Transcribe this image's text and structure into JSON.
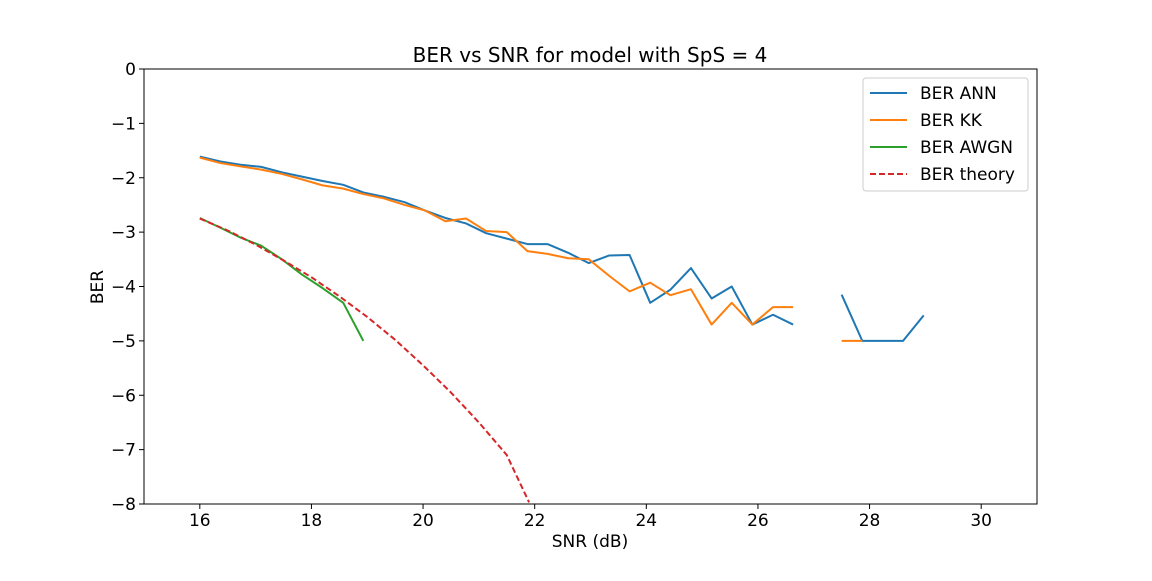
{
  "chart_data": {
    "type": "line",
    "title": "BER vs SNR for model with SpS = 4",
    "xlabel": "SNR (dB)",
    "ylabel": "BER",
    "xlim": [
      15,
      31
    ],
    "ylim": [
      -8,
      0
    ],
    "xticks": [
      16,
      18,
      20,
      22,
      24,
      26,
      28,
      30
    ],
    "yticks": [
      0,
      -1,
      -2,
      -3,
      -4,
      -5,
      -6,
      -7,
      -8
    ],
    "xtick_labels": [
      "16",
      "18",
      "20",
      "22",
      "24",
      "26",
      "28",
      "30"
    ],
    "ytick_labels": [
      "0",
      "−1",
      "−2",
      "−3",
      "−4",
      "−5",
      "−6",
      "−7",
      "−8"
    ],
    "grid": false,
    "legend_position": "top-right",
    "series": [
      {
        "name": "BER ANN",
        "color": "#1f77b4",
        "dashed": false,
        "segments": [
          [
            [
              16.0,
              -1.61
            ],
            [
              16.37,
              -1.7
            ],
            [
              16.73,
              -1.76
            ],
            [
              17.1,
              -1.8
            ],
            [
              17.47,
              -1.9
            ],
            [
              17.83,
              -1.98
            ],
            [
              18.2,
              -2.06
            ],
            [
              18.57,
              -2.13
            ],
            [
              18.93,
              -2.27
            ],
            [
              19.3,
              -2.35
            ],
            [
              19.67,
              -2.45
            ],
            [
              20.03,
              -2.6
            ],
            [
              20.4,
              -2.74
            ],
            [
              20.77,
              -2.84
            ],
            [
              21.13,
              -3.02
            ],
            [
              21.5,
              -3.12
            ],
            [
              21.87,
              -3.22
            ],
            [
              22.23,
              -3.22
            ],
            [
              22.6,
              -3.38
            ],
            [
              22.97,
              -3.57
            ],
            [
              23.33,
              -3.43
            ],
            [
              23.7,
              -3.42
            ],
            [
              24.07,
              -4.3
            ],
            [
              24.43,
              -4.06
            ],
            [
              24.8,
              -3.66
            ],
            [
              25.17,
              -4.22
            ],
            [
              25.53,
              -4.0
            ],
            [
              25.9,
              -4.7
            ],
            [
              26.27,
              -4.52
            ],
            [
              26.63,
              -4.7
            ]
          ],
          [
            [
              27.5,
              -4.15
            ],
            [
              27.87,
              -5.0
            ],
            [
              28.23,
              -5.0
            ],
            [
              28.6,
              -5.0
            ],
            [
              28.97,
              -4.53
            ]
          ]
        ]
      },
      {
        "name": "BER KK",
        "color": "#ff7f0e",
        "dashed": false,
        "segments": [
          [
            [
              16.0,
              -1.63
            ],
            [
              16.37,
              -1.73
            ],
            [
              16.73,
              -1.79
            ],
            [
              17.1,
              -1.85
            ],
            [
              17.47,
              -1.93
            ],
            [
              17.83,
              -2.03
            ],
            [
              18.2,
              -2.14
            ],
            [
              18.57,
              -2.2
            ],
            [
              18.93,
              -2.3
            ],
            [
              19.3,
              -2.38
            ],
            [
              19.67,
              -2.5
            ],
            [
              20.03,
              -2.6
            ],
            [
              20.4,
              -2.8
            ],
            [
              20.77,
              -2.75
            ],
            [
              21.13,
              -2.98
            ],
            [
              21.5,
              -3.0
            ],
            [
              21.87,
              -3.35
            ],
            [
              22.23,
              -3.4
            ],
            [
              22.6,
              -3.48
            ],
            [
              22.97,
              -3.5
            ],
            [
              23.33,
              -3.8
            ],
            [
              23.7,
              -4.09
            ],
            [
              24.07,
              -3.93
            ],
            [
              24.43,
              -4.16
            ],
            [
              24.8,
              -4.05
            ],
            [
              25.17,
              -4.7
            ],
            [
              25.53,
              -4.3
            ],
            [
              25.9,
              -4.7
            ],
            [
              26.27,
              -4.38
            ],
            [
              26.63,
              -4.38
            ]
          ],
          [
            [
              27.5,
              -5.0
            ],
            [
              27.87,
              -5.0
            ]
          ]
        ]
      },
      {
        "name": "BER AWGN",
        "color": "#2ca02c",
        "dashed": false,
        "segments": [
          [
            [
              16.0,
              -2.74
            ],
            [
              16.37,
              -2.92
            ],
            [
              16.73,
              -3.1
            ],
            [
              17.1,
              -3.25
            ],
            [
              17.47,
              -3.5
            ],
            [
              17.83,
              -3.78
            ],
            [
              18.2,
              -4.03
            ],
            [
              18.57,
              -4.3
            ],
            [
              18.93,
              -5.0
            ]
          ]
        ]
      },
      {
        "name": "BER theory",
        "color": "#d62728",
        "dashed": true,
        "segments": [
          [
            [
              16.0,
              -2.75
            ],
            [
              16.5,
              -2.97
            ],
            [
              17.0,
              -3.23
            ],
            [
              17.5,
              -3.52
            ],
            [
              18.0,
              -3.83
            ],
            [
              18.5,
              -4.18
            ],
            [
              19.0,
              -4.56
            ],
            [
              19.5,
              -4.98
            ],
            [
              20.0,
              -5.45
            ],
            [
              20.5,
              -5.95
            ],
            [
              21.0,
              -6.5
            ],
            [
              21.5,
              -7.1
            ],
            [
              21.9,
              -7.97
            ]
          ]
        ]
      }
    ]
  }
}
